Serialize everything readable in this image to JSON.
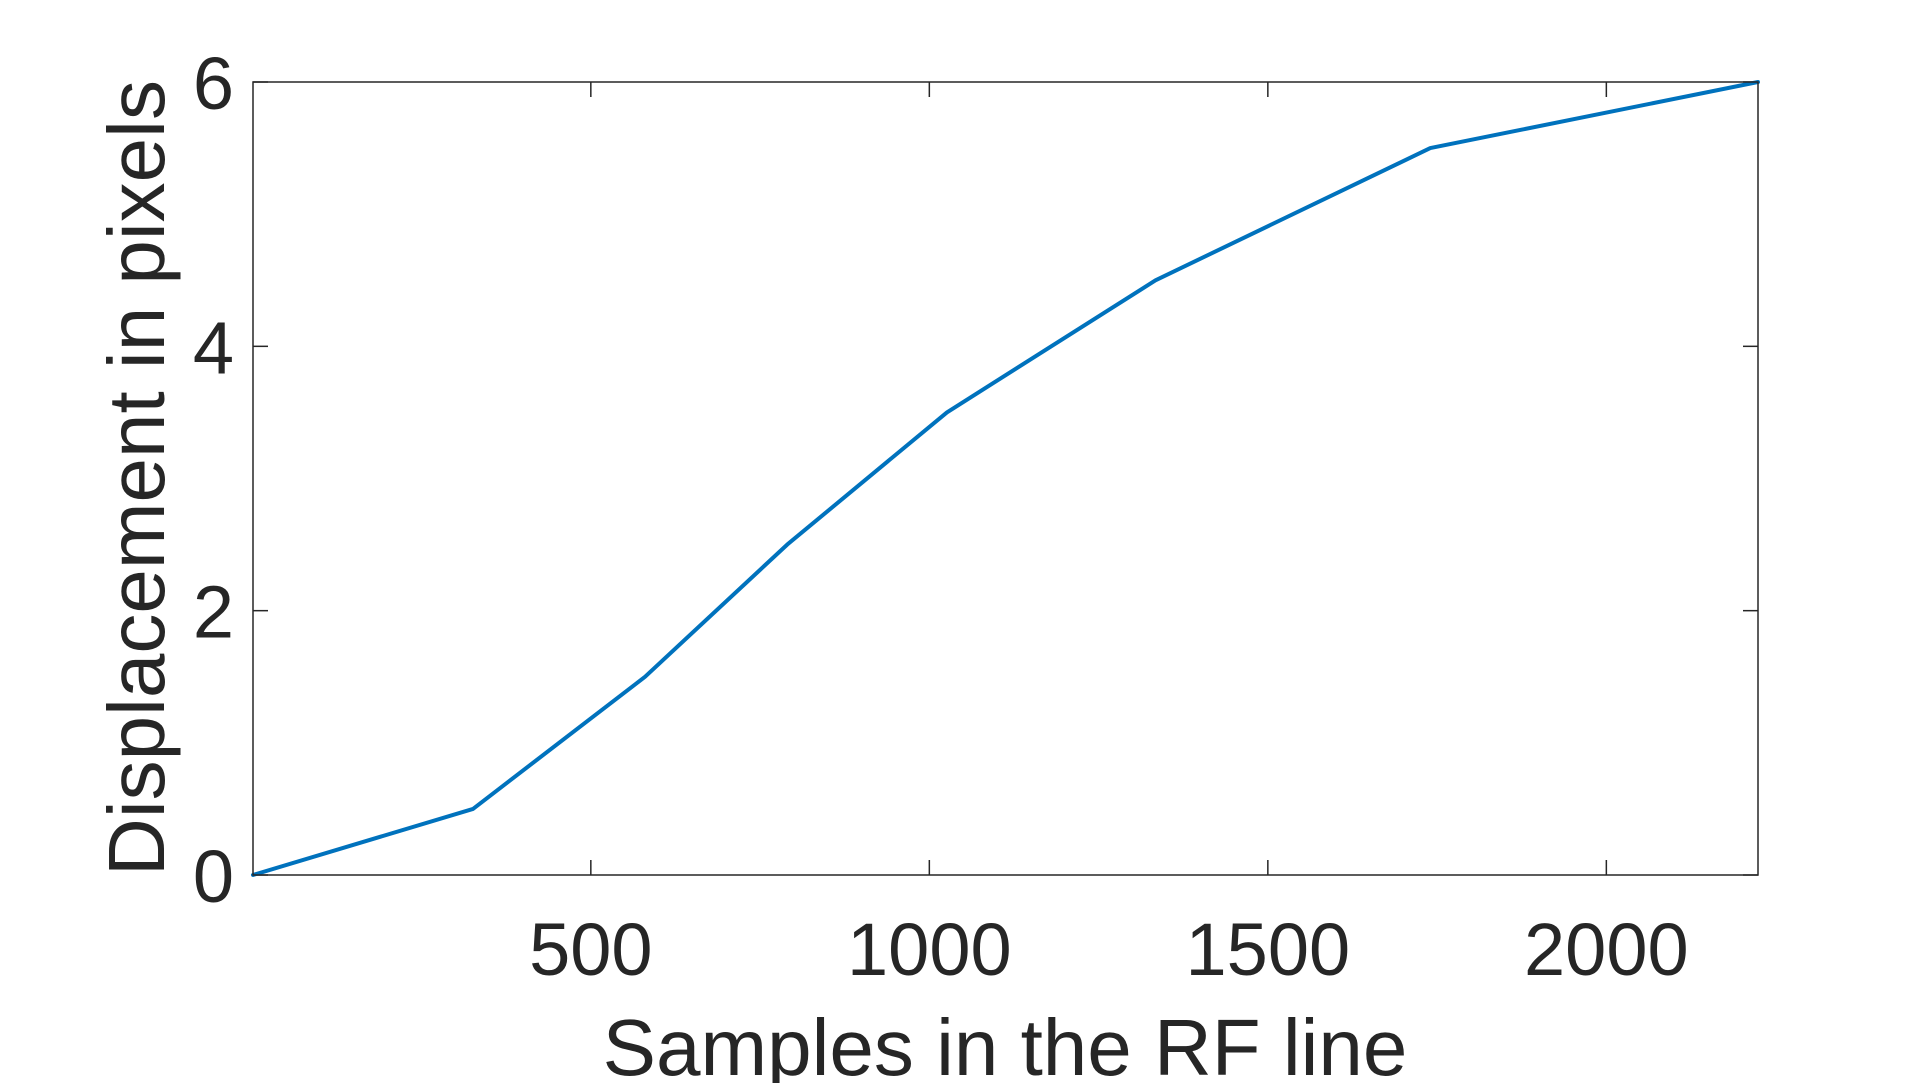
{
  "chart_data": {
    "type": "line",
    "xlabel": "Samples in the RF line",
    "ylabel": "Displacement in pixels",
    "xlim": [
      1,
      2224
    ],
    "ylim": [
      0,
      6
    ],
    "xticks": [
      500,
      1000,
      1500,
      2000
    ],
    "yticks": [
      0,
      2,
      4,
      6
    ],
    "xtick_labels": [
      "500",
      "1000",
      "1500",
      "2000"
    ],
    "ytick_labels": [
      "0",
      "2",
      "4",
      "6"
    ],
    "grid": false,
    "series": [
      {
        "color": "#0072BD",
        "x": [
          1,
          326,
          580,
          790,
          1026,
          1334,
          1740,
          2224
        ],
        "y": [
          0,
          0.5,
          1.5,
          2.5,
          3.5,
          4.5,
          5.5,
          6
        ]
      }
    ]
  }
}
